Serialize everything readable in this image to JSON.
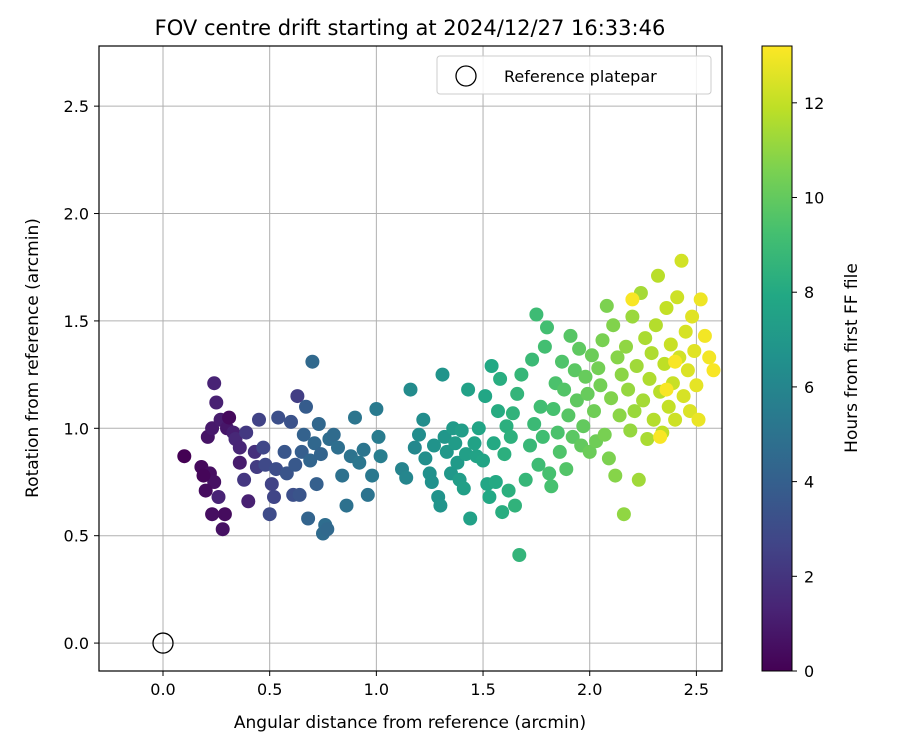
{
  "chart_data": {
    "type": "scatter",
    "title": "FOV centre drift starting at 2024/12/27 16:33:46",
    "xlabel": "Angular distance from reference (arcmin)",
    "ylabel": "Rotation from reference (arcmin)",
    "xlim": [
      -0.3,
      2.62
    ],
    "ylim": [
      -0.13,
      2.78
    ],
    "xticks": [
      0.0,
      0.5,
      1.0,
      1.5,
      2.0,
      2.5
    ],
    "yticks": [
      0.0,
      0.5,
      1.0,
      1.5,
      2.0,
      2.5
    ],
    "grid": true,
    "legend": {
      "placement": "top-right",
      "entries": [
        "Reference platepar"
      ]
    },
    "colorbar": {
      "label": "Hours from first FF file",
      "range": [
        0,
        13.2
      ],
      "ticks": [
        0,
        2,
        4,
        6,
        8,
        10,
        12
      ],
      "colormap": "viridis"
    },
    "reference_point": {
      "name": "Reference platepar",
      "x": 0.0,
      "y": 0.0
    },
    "series": [
      {
        "points": [
          [
            0.1,
            0.87,
            0.0
          ],
          [
            0.18,
            0.82,
            0.3
          ],
          [
            0.22,
            0.79,
            0.5
          ],
          [
            0.24,
            0.75,
            0.6
          ],
          [
            0.19,
            0.78,
            0.2
          ],
          [
            0.21,
            0.96,
            0.7
          ],
          [
            0.23,
            1.0,
            0.9
          ],
          [
            0.25,
            1.12,
            1.2
          ],
          [
            0.27,
            1.04,
            1.0
          ],
          [
            0.3,
            1.0,
            0.8
          ],
          [
            0.33,
            0.98,
            1.1
          ],
          [
            0.24,
            1.21,
            1.3
          ],
          [
            0.29,
            0.6,
            0.4
          ],
          [
            0.23,
            0.6,
            0.5
          ],
          [
            0.28,
            0.53,
            0.6
          ],
          [
            0.2,
            0.71,
            0.4
          ],
          [
            0.26,
            0.68,
            1.3
          ],
          [
            0.31,
            1.05,
            0.3
          ],
          [
            0.34,
            0.95,
            1.5
          ],
          [
            0.36,
            0.91,
            1.4
          ],
          [
            0.36,
            0.84,
            1.0
          ],
          [
            0.38,
            0.76,
            2.1
          ],
          [
            0.4,
            0.66,
            1.2
          ],
          [
            0.39,
            0.98,
            2.2
          ],
          [
            0.43,
            0.89,
            1.8
          ],
          [
            0.44,
            0.82,
            2.3
          ],
          [
            0.45,
            1.04,
            2.6
          ],
          [
            0.47,
            0.91,
            2.8
          ],
          [
            0.48,
            0.83,
            2.9
          ],
          [
            0.5,
            0.6,
            3.0
          ],
          [
            0.51,
            0.74,
            2.6
          ],
          [
            0.53,
            0.81,
            3.1
          ],
          [
            0.52,
            0.68,
            2.7
          ],
          [
            0.54,
            1.05,
            3.2
          ],
          [
            0.57,
            0.89,
            3.5
          ],
          [
            0.58,
            0.79,
            3.4
          ],
          [
            0.6,
            1.03,
            3.3
          ],
          [
            0.61,
            0.69,
            3.2
          ],
          [
            0.62,
            0.83,
            3.6
          ],
          [
            0.63,
            1.15,
            2.4
          ],
          [
            0.64,
            0.69,
            3.4
          ],
          [
            0.65,
            0.89,
            3.9
          ],
          [
            0.66,
            0.97,
            4.1
          ],
          [
            0.67,
            1.1,
            3.8
          ],
          [
            0.68,
            0.58,
            4.2
          ],
          [
            0.69,
            0.85,
            4.3
          ],
          [
            0.7,
            1.31,
            4.5
          ],
          [
            0.71,
            0.93,
            4.4
          ],
          [
            0.72,
            0.74,
            4.0
          ],
          [
            0.73,
            1.02,
            4.4
          ],
          [
            0.74,
            0.88,
            4.2
          ],
          [
            0.75,
            0.51,
            4.6
          ],
          [
            0.76,
            0.55,
            4.7
          ],
          [
            0.77,
            0.53,
            4.5
          ],
          [
            0.78,
            0.95,
            4.7
          ],
          [
            0.8,
            0.97,
            4.6
          ],
          [
            0.82,
            0.91,
            4.8
          ],
          [
            0.84,
            0.78,
            4.9
          ],
          [
            0.86,
            0.64,
            4.9
          ],
          [
            0.88,
            0.87,
            5.0
          ],
          [
            0.9,
            1.05,
            5.1
          ],
          [
            0.92,
            0.84,
            5.2
          ],
          [
            0.94,
            0.9,
            5.1
          ],
          [
            0.96,
            0.69,
            5.0
          ],
          [
            0.98,
            0.78,
            5.3
          ],
          [
            1.0,
            1.09,
            5.4
          ],
          [
            1.01,
            0.96,
            5.5
          ],
          [
            1.02,
            0.87,
            5.6
          ],
          [
            1.12,
            0.81,
            5.9
          ],
          [
            1.14,
            0.77,
            6.0
          ],
          [
            1.16,
            1.18,
            6.3
          ],
          [
            1.18,
            0.91,
            6.1
          ],
          [
            1.2,
            0.97,
            6.4
          ],
          [
            1.22,
            1.04,
            6.4
          ],
          [
            1.23,
            0.86,
            6.5
          ],
          [
            1.25,
            0.79,
            6.6
          ],
          [
            1.26,
            0.75,
            6.6
          ],
          [
            1.27,
            0.92,
            6.7
          ],
          [
            1.29,
            0.68,
            6.7
          ],
          [
            1.3,
            0.64,
            6.8
          ],
          [
            1.31,
            1.25,
            6.8
          ],
          [
            1.32,
            0.96,
            6.9
          ],
          [
            1.33,
            0.89,
            7.0
          ],
          [
            1.35,
            0.79,
            7.0
          ],
          [
            1.36,
            1.0,
            7.1
          ],
          [
            1.37,
            0.93,
            7.2
          ],
          [
            1.38,
            0.84,
            7.1
          ],
          [
            1.39,
            0.76,
            7.3
          ],
          [
            1.4,
            0.99,
            7.3
          ],
          [
            1.41,
            0.72,
            7.4
          ],
          [
            1.42,
            0.88,
            7.4
          ],
          [
            1.43,
            1.18,
            7.5
          ],
          [
            1.44,
            0.58,
            7.5
          ],
          [
            1.46,
            0.93,
            7.6
          ],
          [
            1.47,
            0.87,
            7.6
          ],
          [
            1.48,
            1.0,
            7.7
          ],
          [
            1.5,
            0.85,
            7.7
          ],
          [
            1.51,
            1.15,
            7.8
          ],
          [
            1.52,
            0.74,
            7.8
          ],
          [
            1.53,
            0.68,
            7.9
          ],
          [
            1.54,
            1.29,
            7.9
          ],
          [
            1.55,
            0.93,
            8.0
          ],
          [
            1.56,
            0.75,
            8.0
          ],
          [
            1.57,
            1.08,
            8.1
          ],
          [
            1.58,
            1.23,
            8.2
          ],
          [
            1.59,
            0.61,
            8.2
          ],
          [
            1.6,
            0.88,
            8.3
          ],
          [
            1.61,
            1.01,
            8.3
          ],
          [
            1.62,
            0.71,
            8.3
          ],
          [
            1.63,
            0.96,
            8.4
          ],
          [
            1.64,
            1.07,
            8.5
          ],
          [
            1.65,
            0.64,
            8.5
          ],
          [
            1.66,
            1.16,
            8.6
          ],
          [
            1.67,
            0.41,
            8.6
          ],
          [
            1.68,
            1.25,
            8.7
          ],
          [
            1.7,
            0.76,
            8.7
          ],
          [
            1.72,
            0.92,
            8.8
          ],
          [
            1.73,
            1.32,
            8.9
          ],
          [
            1.74,
            1.02,
            8.9
          ],
          [
            1.75,
            1.53,
            9.0
          ],
          [
            1.76,
            0.83,
            9.0
          ],
          [
            1.77,
            1.1,
            9.1
          ],
          [
            1.78,
            0.96,
            9.1
          ],
          [
            1.79,
            1.38,
            9.2
          ],
          [
            1.8,
            1.47,
            9.2
          ],
          [
            1.81,
            0.79,
            9.3
          ],
          [
            1.82,
            0.73,
            9.3
          ],
          [
            1.83,
            1.09,
            9.3
          ],
          [
            1.84,
            1.21,
            9.4
          ],
          [
            1.85,
            0.98,
            9.4
          ],
          [
            1.86,
            0.89,
            9.5
          ],
          [
            1.87,
            1.31,
            9.5
          ],
          [
            1.88,
            1.18,
            9.6
          ],
          [
            1.89,
            0.81,
            9.6
          ],
          [
            1.9,
            1.06,
            9.7
          ],
          [
            1.91,
            1.43,
            9.7
          ],
          [
            1.92,
            0.96,
            9.8
          ],
          [
            1.93,
            1.27,
            9.8
          ],
          [
            1.94,
            1.13,
            9.9
          ],
          [
            1.95,
            1.37,
            9.9
          ],
          [
            1.96,
            0.92,
            10.0
          ],
          [
            1.97,
            1.01,
            10.0
          ],
          [
            1.98,
            1.24,
            10.1
          ],
          [
            1.99,
            1.16,
            10.1
          ],
          [
            2.0,
            0.89,
            10.2
          ],
          [
            2.01,
            1.34,
            10.2
          ],
          [
            2.02,
            1.08,
            10.3
          ],
          [
            2.03,
            0.94,
            10.3
          ],
          [
            2.04,
            1.28,
            10.4
          ],
          [
            2.05,
            1.2,
            10.4
          ],
          [
            2.06,
            1.41,
            10.5
          ],
          [
            2.07,
            0.97,
            10.5
          ],
          [
            2.08,
            1.57,
            10.6
          ],
          [
            2.09,
            0.86,
            10.6
          ],
          [
            2.1,
            1.14,
            10.7
          ],
          [
            2.11,
            1.48,
            10.7
          ],
          [
            2.12,
            0.78,
            10.8
          ],
          [
            2.13,
            1.33,
            10.8
          ],
          [
            2.14,
            1.06,
            10.9
          ],
          [
            2.15,
            1.25,
            10.9
          ],
          [
            2.16,
            0.6,
            11.0
          ],
          [
            2.17,
            1.38,
            11.0
          ],
          [
            2.18,
            1.18,
            11.1
          ],
          [
            2.19,
            0.99,
            11.1
          ],
          [
            2.2,
            1.52,
            11.2
          ],
          [
            2.21,
            1.08,
            11.2
          ],
          [
            2.22,
            1.29,
            11.3
          ],
          [
            2.23,
            0.76,
            11.3
          ],
          [
            2.24,
            1.63,
            11.4
          ],
          [
            2.25,
            1.13,
            11.4
          ],
          [
            2.26,
            1.42,
            11.5
          ],
          [
            2.27,
            0.95,
            11.5
          ],
          [
            2.28,
            1.23,
            11.6
          ],
          [
            2.29,
            1.35,
            11.6
          ],
          [
            2.3,
            1.04,
            11.7
          ],
          [
            2.31,
            1.48,
            11.7
          ],
          [
            2.32,
            1.71,
            11.8
          ],
          [
            2.33,
            1.17,
            11.8
          ],
          [
            2.34,
            0.98,
            11.9
          ],
          [
            2.35,
            1.3,
            11.9
          ],
          [
            2.36,
            1.56,
            12.0
          ],
          [
            2.37,
            1.1,
            12.0
          ],
          [
            2.38,
            1.39,
            12.1
          ],
          [
            2.39,
            1.21,
            12.1
          ],
          [
            2.4,
            1.04,
            12.2
          ],
          [
            2.41,
            1.61,
            12.2
          ],
          [
            2.42,
            1.33,
            12.3
          ],
          [
            2.43,
            1.78,
            12.3
          ],
          [
            2.44,
            1.15,
            12.4
          ],
          [
            2.45,
            1.45,
            12.4
          ],
          [
            2.46,
            1.27,
            12.5
          ],
          [
            2.47,
            1.08,
            12.5
          ],
          [
            2.48,
            1.52,
            12.6
          ],
          [
            2.49,
            1.36,
            12.6
          ],
          [
            2.5,
            1.2,
            12.7
          ],
          [
            2.51,
            1.04,
            12.8
          ],
          [
            2.52,
            1.6,
            12.9
          ],
          [
            2.54,
            1.43,
            13.0
          ],
          [
            2.56,
            1.33,
            13.0
          ],
          [
            2.58,
            1.27,
            13.1
          ],
          [
            2.2,
            1.6,
            13.1
          ],
          [
            2.36,
            1.18,
            13.1
          ],
          [
            2.33,
            0.96,
            13.1
          ],
          [
            2.4,
            1.31,
            13.1
          ]
        ]
      }
    ]
  }
}
